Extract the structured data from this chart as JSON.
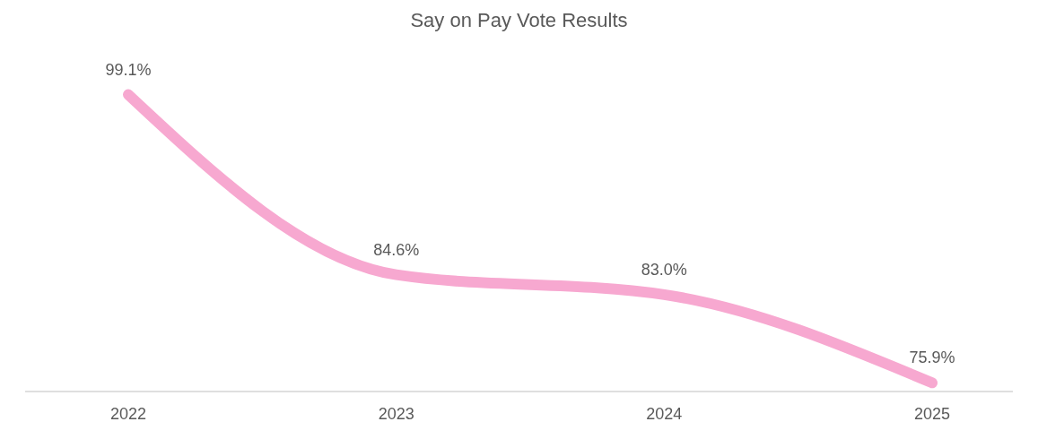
{
  "chart_data": {
    "type": "line",
    "title": "Say on Pay Vote Results",
    "categories": [
      "2022",
      "2023",
      "2024",
      "2025"
    ],
    "series": [
      {
        "color": "#f7a8d0",
        "values": [
          99.1,
          84.6,
          83.0,
          75.9
        ],
        "value_labels": [
          "99.1%",
          "84.6%",
          "83.0%",
          "75.9%"
        ]
      }
    ],
    "grid": false,
    "marker": "none",
    "line_style": "solid",
    "tick_labels": "x"
  }
}
